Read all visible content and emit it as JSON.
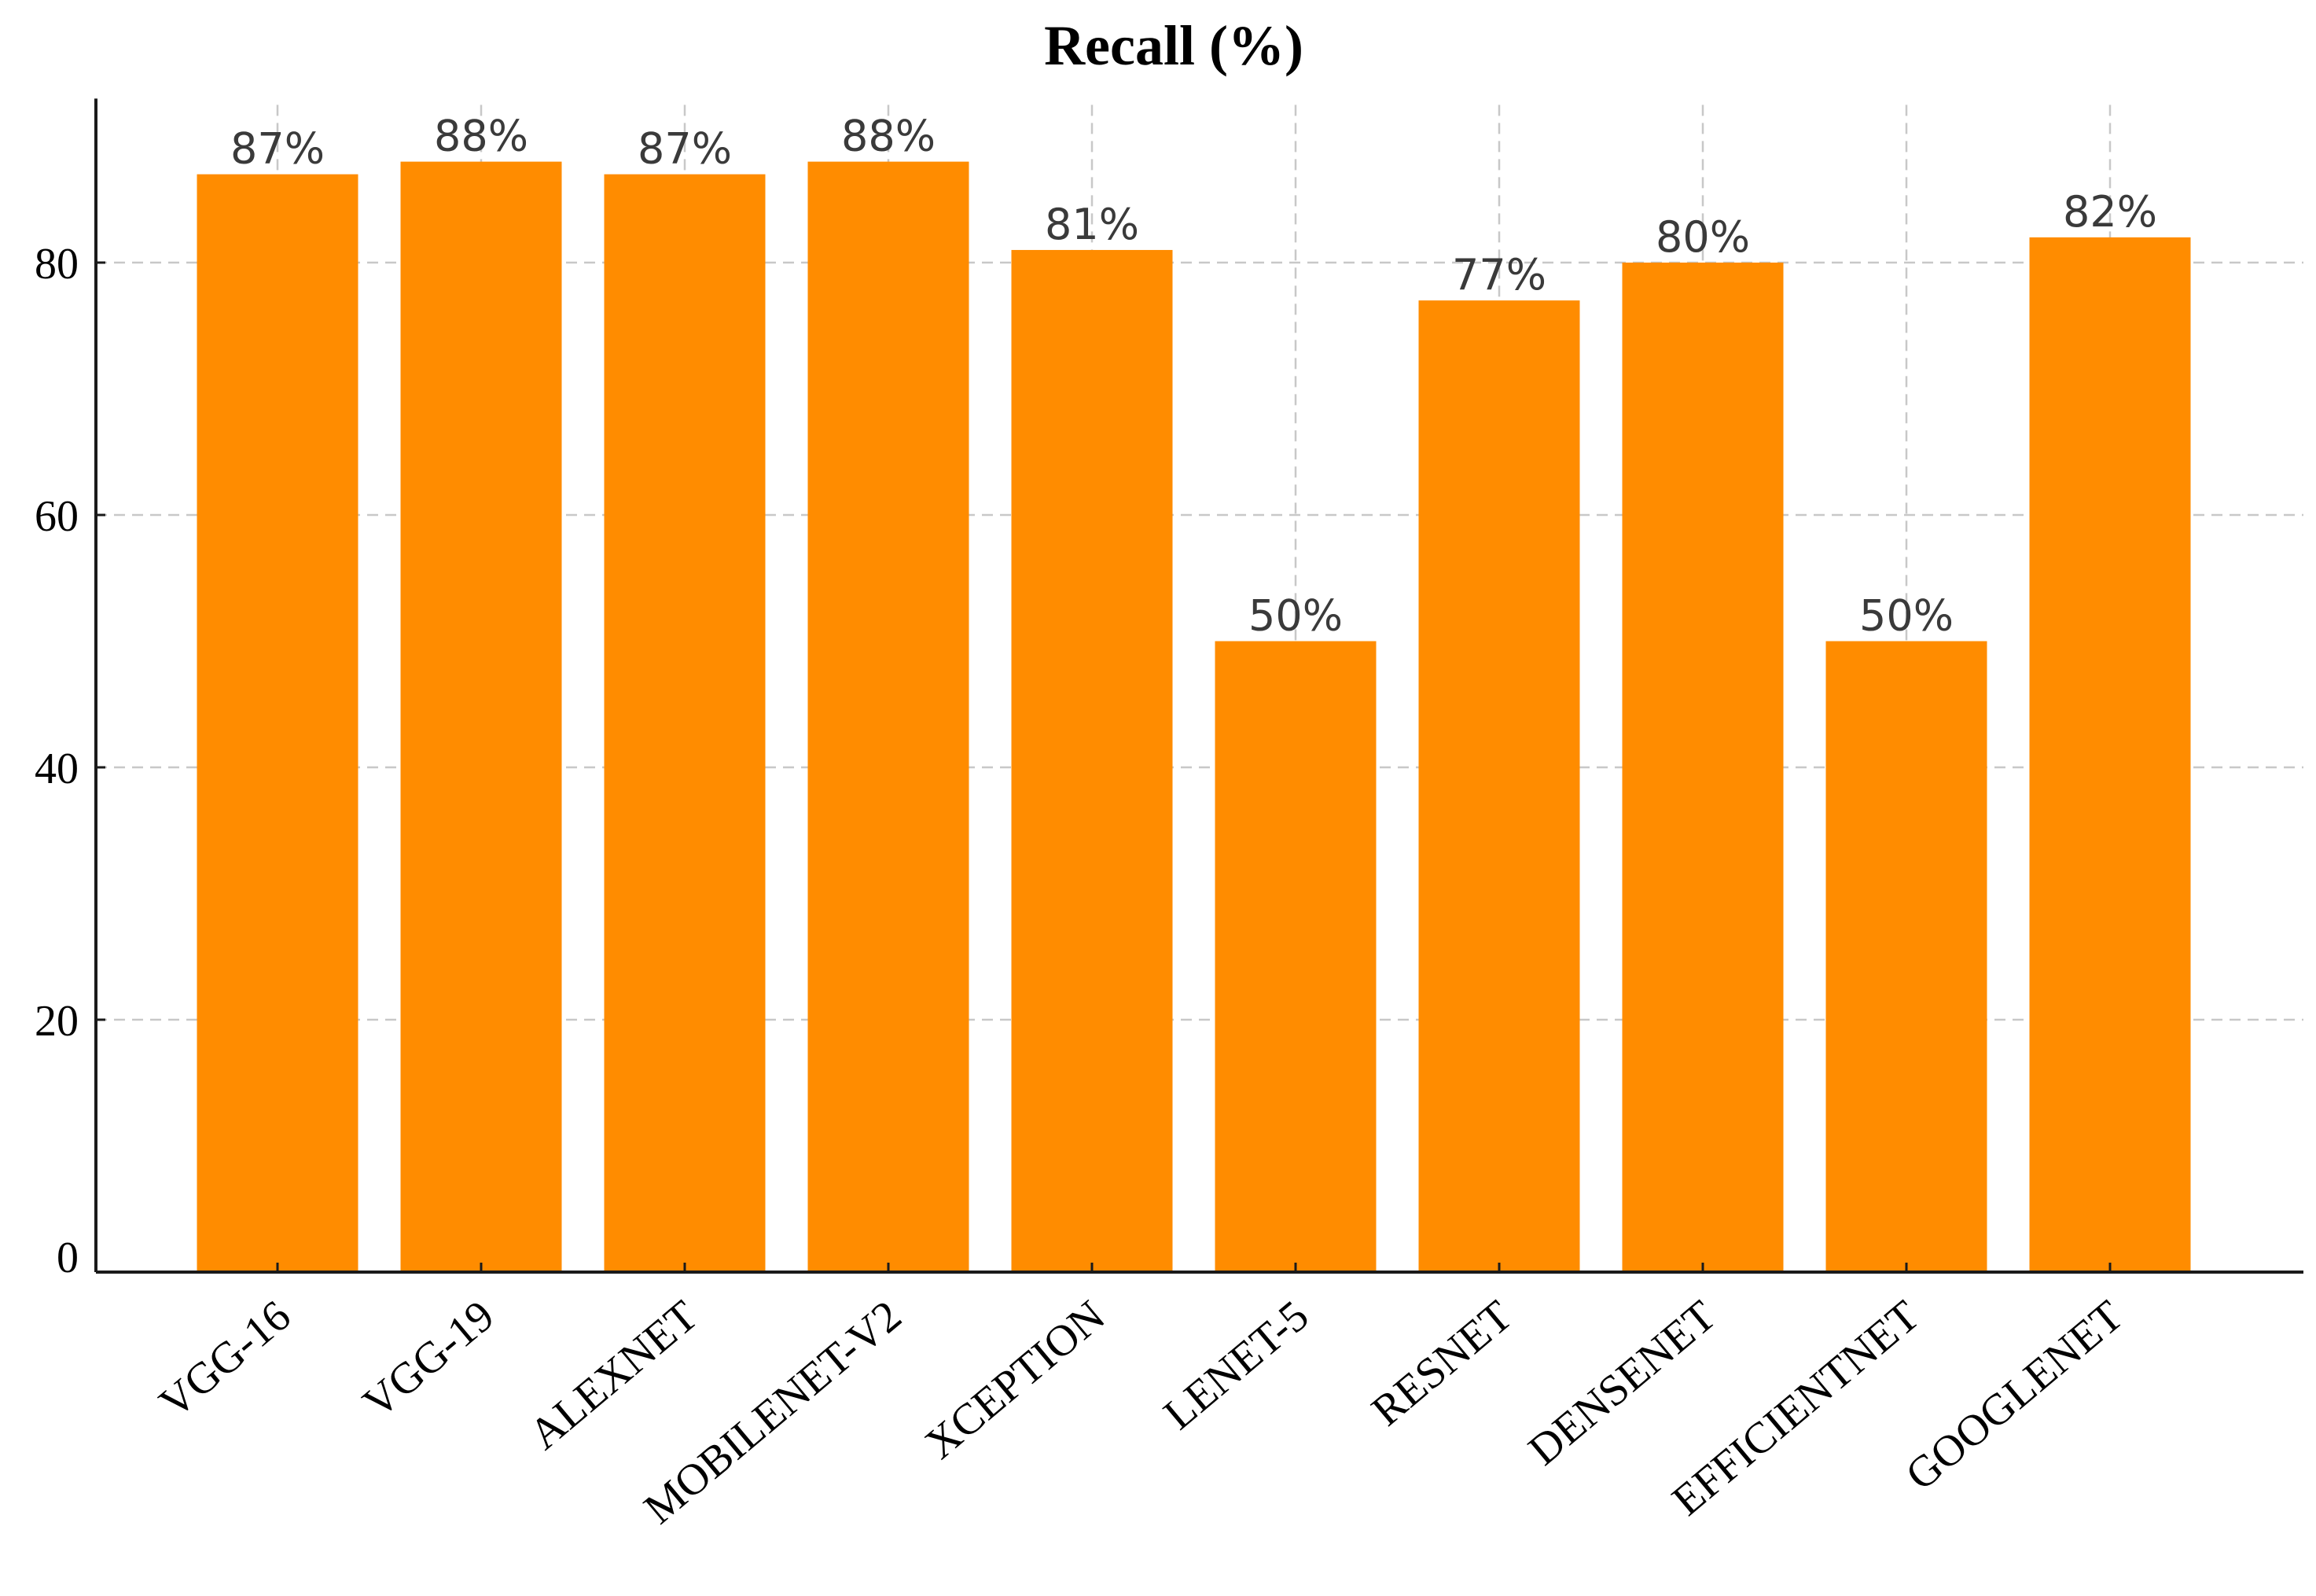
{
  "chart_data": {
    "type": "bar",
    "title": "Recall (%)",
    "xlabel": "",
    "ylabel": "",
    "categories": [
      "VGG-16",
      "VGG-19",
      "ALEXNET",
      "MOBILENET-V2",
      "XCEPTION",
      "LENET-5",
      "RESNET",
      "DENSENET",
      "EFFICIENTNET",
      "GOOGLENET"
    ],
    "values": [
      87,
      88,
      87,
      88,
      81,
      50,
      77,
      80,
      50,
      82
    ],
    "value_labels": [
      "87%",
      "88%",
      "87%",
      "88%",
      "81%",
      "50%",
      "77%",
      "80%",
      "50%",
      "82%"
    ],
    "ylim": [
      0,
      92.5
    ],
    "yticks": [
      0,
      20,
      40,
      60,
      80
    ],
    "grid": true,
    "bar_color": "#ff8c00"
  }
}
